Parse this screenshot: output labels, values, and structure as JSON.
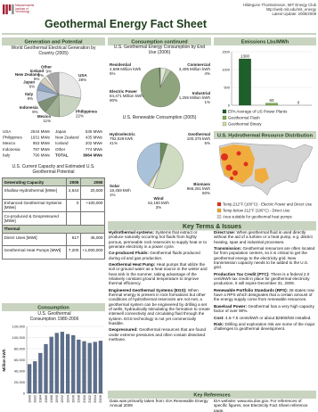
{
  "header": {
    "logo": "Massachusetts Institute of Technology",
    "title": "Geothermal Energy Fact Sheet",
    "author": "Hildegunn Thorsteinsson, MIT Energy Club",
    "url": "http://web.mit.edu/mit_energy",
    "update": "Latest Update: 2009/2008"
  },
  "generation": {
    "heading": "Generation and Potential",
    "world_pie": {
      "type": "pie",
      "title": "World Geothermal Electrical Generation by Country (2005)",
      "categories": [
        "USA",
        "Philippines",
        "Mexico",
        "Indonesia",
        "Italy",
        "Japan",
        "New Zealand",
        "Iceland",
        "Other"
      ],
      "values": [
        28,
        22,
        11,
        9,
        9,
        6,
        5,
        2,
        9
      ],
      "value_labels": [
        "28%",
        "22%",
        "11%",
        "9%",
        "9%",
        "6%",
        "5%",
        "2%",
        "9%"
      ],
      "colors": [
        "#e8e8e8",
        "#c8d3c0",
        "#9fb095",
        "#7d8f74",
        "#b7c4d6",
        "#8fa3bf",
        "#d6cfbf",
        "#f2efe6",
        "#a8a8a8"
      ]
    },
    "capacity_list": [
      [
        "USA",
        "2544 MWe"
      ],
      [
        "Philippines",
        "1931 MWe"
      ],
      [
        "Mexico",
        "953 MWe"
      ],
      [
        "Indonesia",
        "797 MWe"
      ],
      [
        "Italy",
        "790 MWe"
      ],
      [
        "Japan",
        "535 MWe"
      ],
      [
        "New Zealand",
        "435 MWe"
      ],
      [
        "Iceland",
        "202 MWe"
      ],
      [
        "Other",
        "774 MWe"
      ],
      [
        "TOTAL",
        "8964 MWe"
      ]
    ],
    "potential": {
      "title": "U.S. Current Capacity and Estimated U.S. Geothermal Potential",
      "columns": [
        "Generating Capacity",
        "2005",
        "2050"
      ],
      "electric_rows": [
        [
          "Shallow Hydrothermal [MWe]",
          "2,544",
          "20,000"
        ],
        [
          "Enhanced Geothermal Systems [MWe]",
          "0",
          "+100,000"
        ],
        [
          "Co-produced & Geopressured [MWe]"
        ]
      ],
      "thermal_heading": "Thermal",
      "thermal_rows": [
        [
          "Direct Uses [MWt]",
          "617",
          "45,000"
        ],
        [
          "Geothermal Heat Pumps [MWt]",
          "7,200",
          "+1,000,000"
        ]
      ]
    }
  },
  "consumption": {
    "heading": "Consumption",
    "chart": {
      "type": "bar",
      "title": "U.S. Geothermal Consumption 1980-2006",
      "y_label": "Million kWh",
      "categories": [
        "1980",
        "1982",
        "1984",
        "1986",
        "1988",
        "1990",
        "1992",
        "1994",
        "1996",
        "1998",
        "2000",
        "2002",
        "2004",
        "2006"
      ],
      "values": [
        52000,
        57000,
        72000,
        88000,
        101000,
        108000,
        110000,
        106000,
        104000,
        96000,
        93000,
        90000,
        92000,
        94000
      ],
      "color": "#5b6f8f",
      "ylim": [
        0,
        120000
      ],
      "yticks": [
        0,
        {
          "value": 20000,
          "label": "20,000"
        },
        {
          "value": 40000,
          "label": "40,000"
        },
        {
          "value": 60000,
          "label": "60,000"
        },
        {
          "value": 80000,
          "label": "80,000"
        },
        {
          "value": 100000,
          "label": "100,000"
        },
        {
          "value": 120000,
          "label": "120,000"
        }
      ]
    }
  },
  "consumption_cont": {
    "heading": "Consumption continued",
    "end_use": {
      "type": "pie",
      "title": "U.S. Geothermal Energy Consumption by End Use (2006)",
      "categories": [
        "Residential",
        "Commercial",
        "Electric Power",
        "Industrial"
      ],
      "amount_labels": [
        "4,699",
        "3,495",
        "84,471",
        "1,255"
      ],
      "unit": "Million kWh",
      "values": [
        5,
        4,
        90,
        1
      ],
      "value_labels": [
        "5%",
        "4%",
        "90%",
        "1%"
      ],
      "colors": [
        "#dfe8d5",
        "#b9c9ab",
        "#8ea47d",
        "#5f7a50"
      ]
    },
    "renewable": {
      "type": "pie",
      "title": "U.S. Renewable Consumption (2005)",
      "categories": [
        "Geothermal",
        "Biomass",
        "Wind",
        "Solar",
        "Hydroelectric"
      ],
      "amount_labels": [
        "100,375",
        "966,261",
        "52,180",
        "18,459",
        "792,029"
      ],
      "unit": "kWh",
      "values": [
        5,
        50,
        3,
        1,
        41
      ],
      "value_labels": [
        "5%",
        "50%",
        "3%",
        "1%",
        "41%"
      ],
      "colors": [
        "#6b8e5a",
        "#cfdcc2",
        "#e9eee3",
        "#f6d36b",
        "#a9c1d9"
      ]
    }
  },
  "emissions": {
    "heading": "Emissions Lbs/MWh",
    "chart": {
      "type": "bar",
      "categories": [
        "EPA Average of US Power Plants",
        "Geothermal Flash",
        "Geothermal Binary"
      ],
      "values": [
        1300,
        60,
        0
      ],
      "colors": [
        "#1f5f2a",
        "#7fae4e",
        "#c7e09a"
      ],
      "ylim": [
        0,
        1500
      ],
      "yticks": [
        0,
        500,
        1000,
        1500
      ]
    }
  },
  "map": {
    "heading": "U.S. Hydrothermal Resource Distribution",
    "legend": [
      "Temp.212°F (100°C) - Electric Power and Direct Use",
      "Temp below 212°F (100°C) - Direct Use",
      "Area suitable for geothermal heat pumps"
    ],
    "colors": [
      "#e0311c",
      "#f5a623",
      "#d4d4d4"
    ]
  },
  "key_terms": {
    "heading": "Key Terms & Issues",
    "left": [
      {
        "term": "Hydrothermal systems:",
        "text": "Systems that extract or produce naturally occurring hot fluids from highly porous, permeable rock reservoirs to supply heat or to generate electricity in a power cycle."
      },
      {
        "term": "Co-produced Fluids:",
        "text": "Geothermal fluids produced during oil and gas production."
      },
      {
        "term": "Geothermal Heat Pump:",
        "text": "Heat pumps that utilize the soil or ground water as a heat source in the winter and heat sink in the summer, taking advantage of the relatively constant ground temperature to improve thermal efficiency."
      },
      {
        "term": "Engineered Geothermal Systems (EGS):",
        "text": "When thermal energy is present in rock formations but other conditions of hydrothermal reservoirs are not met, a geothermal system can be engineered by drilling a set of wells, hydraulically stimulating the formation to create interwell connectivity and circulating fluid through the system. EGS technology is not yet commercially feasible."
      },
      {
        "term": "Geopressured:",
        "text": "Geothermal resources that are found under extreme pressures and often contain dissolved methane."
      }
    ],
    "right": [
      {
        "term": "Direct Use:",
        "text": "When geothermal fluid is used directly without the aid of a turbine or a heat pump, e.g. district heating, spas and industrial processes."
      },
      {
        "term": "Transmission:",
        "text": "Geothermal resources are often located far from population centers, so it is critical to get the geothermal energy to the electricity grid. New transmission capacity needs to be added to the U.S. grid."
      },
      {
        "term": "Production Tax Credit (PTC):",
        "text": "There is a federal 2.0 cent/kWh tax credit in place for geothermal electricity production. It will expire December 31, 2009."
      },
      {
        "term": "Renewable Portfolio Standards (RPS):",
        "text": "28 states now have a RPS which designates that a certain amount of the energy supply come from renewable resources."
      },
      {
        "term": "Baseload Power:",
        "text": "Geothermal has a very high capacity factor of over 90%."
      },
      {
        "term": "Cost:",
        "text": "4.5-7.5 cents/kWh or about $2800/kW installed."
      },
      {
        "term": "Risk:",
        "text": "Drilling and exploration risk are some of the major challenges to geothermal development."
      }
    ]
  },
  "references": {
    "heading": "Key References",
    "left": "Data was primarily taken from: EIA Renewable Energy Annual 2009",
    "right": "EIA website: www.eia.doe.gov. For references of specific figures, see Electricity Fact Sheet reference page."
  }
}
